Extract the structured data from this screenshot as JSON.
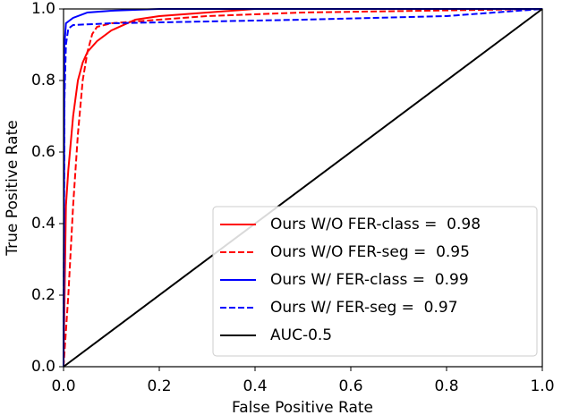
{
  "chart_data": {
    "type": "line",
    "xlabel": "False Positive Rate",
    "ylabel": "True Positive Rate",
    "xlim": [
      0,
      1
    ],
    "ylim": [
      0,
      1
    ],
    "xticks": [
      {
        "value": 0,
        "label": "0.0"
      },
      {
        "value": 0.2,
        "label": "0.2"
      },
      {
        "value": 0.4,
        "label": "0.4"
      },
      {
        "value": 0.6,
        "label": "0.6"
      },
      {
        "value": 0.8,
        "label": "0.8"
      },
      {
        "value": 1,
        "label": "1.0"
      }
    ],
    "yticks": [
      {
        "value": 0,
        "label": "0.0"
      },
      {
        "value": 0.2,
        "label": "0.2"
      },
      {
        "value": 0.4,
        "label": "0.4"
      },
      {
        "value": 0.6,
        "label": "0.6"
      },
      {
        "value": 0.8,
        "label": "0.8"
      },
      {
        "value": 1,
        "label": "1.0"
      }
    ],
    "legend": "lower right",
    "series": [
      {
        "name": "Ours W/O FER-class =  0.98",
        "color": "#ff0000",
        "linestyle": "solid",
        "x": [
          0,
          0.005,
          0.01,
          0.02,
          0.03,
          0.04,
          0.05,
          0.07,
          0.1,
          0.15,
          0.2,
          0.3,
          0.4,
          1
        ],
        "values": [
          0,
          0.45,
          0.55,
          0.7,
          0.8,
          0.85,
          0.88,
          0.91,
          0.94,
          0.97,
          0.98,
          0.99,
          1,
          1
        ]
      },
      {
        "name": "Ours W/O FER-seg =  0.95",
        "color": "#ff0000",
        "linestyle": "dashed",
        "x": [
          0,
          0.01,
          0.02,
          0.03,
          0.04,
          0.05,
          0.06,
          0.07,
          0.1,
          0.3,
          0.5,
          1
        ],
        "values": [
          0,
          0.2,
          0.45,
          0.65,
          0.8,
          0.88,
          0.93,
          0.95,
          0.96,
          0.98,
          0.99,
          1
        ]
      },
      {
        "name": "Ours W/ FER-class =  0.99",
        "color": "#0000ff",
        "linestyle": "solid",
        "x": [
          0,
          0.002,
          0.005,
          0.02,
          0.05,
          0.1,
          0.2,
          1
        ],
        "values": [
          0,
          0.9,
          0.96,
          0.975,
          0.99,
          0.995,
          1,
          1
        ]
      },
      {
        "name": "Ours W/ FER-seg =  0.97",
        "color": "#0000ff",
        "linestyle": "dashed",
        "x": [
          0,
          0.002,
          0.005,
          0.01,
          0.02,
          0.1,
          0.5,
          0.8,
          1
        ],
        "values": [
          0,
          0.75,
          0.9,
          0.945,
          0.955,
          0.96,
          0.97,
          0.98,
          1
        ]
      },
      {
        "name": "AUC-0.5",
        "color": "#000000",
        "linestyle": "solid",
        "x": [
          0,
          1
        ],
        "values": [
          0,
          1
        ]
      }
    ]
  }
}
